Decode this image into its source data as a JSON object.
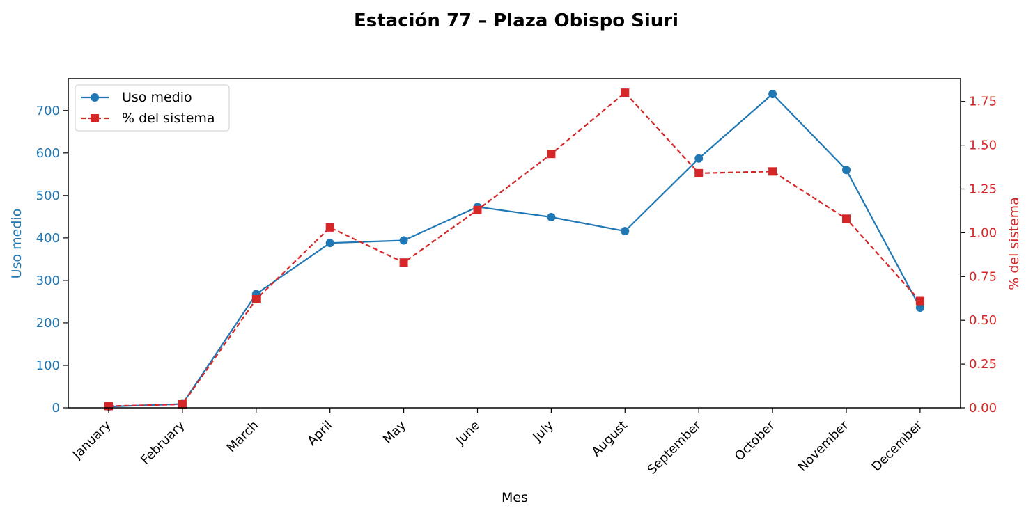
{
  "colors": {
    "left": "#1f77b4",
    "right": "#d62728"
  },
  "chart_data": {
    "type": "line",
    "title": "Estación 77 – Plaza Obispo Siuri",
    "xlabel": "Mes",
    "ylabel_left": "Uso medio",
    "ylabel_right": "% del sistema",
    "categories": [
      "January",
      "February",
      "March",
      "April",
      "May",
      "June",
      "July",
      "August",
      "September",
      "October",
      "November",
      "December"
    ],
    "ylim_left": [
      0,
      775
    ],
    "yticks_left": [
      "0",
      "100",
      "200",
      "300",
      "400",
      "500",
      "600",
      "700"
    ],
    "ylim_right": [
      0,
      1.88
    ],
    "yticks_right": [
      "0.00",
      "0.25",
      "0.50",
      "0.75",
      "1.00",
      "1.25",
      "1.50",
      "1.75"
    ],
    "legend_position": "top-left",
    "grid": false,
    "series": [
      {
        "name": "Uso medio",
        "axis": "left",
        "marker": "circle",
        "style": "solid",
        "values": [
          3,
          9,
          268,
          388,
          394,
          473,
          449,
          416,
          587,
          739,
          560,
          236
        ]
      },
      {
        "name": "% del sistema",
        "axis": "right",
        "marker": "square",
        "style": "dashed",
        "values": [
          0.01,
          0.02,
          0.62,
          1.03,
          0.83,
          1.13,
          1.45,
          1.8,
          1.34,
          1.35,
          1.08,
          0.61
        ]
      }
    ]
  }
}
